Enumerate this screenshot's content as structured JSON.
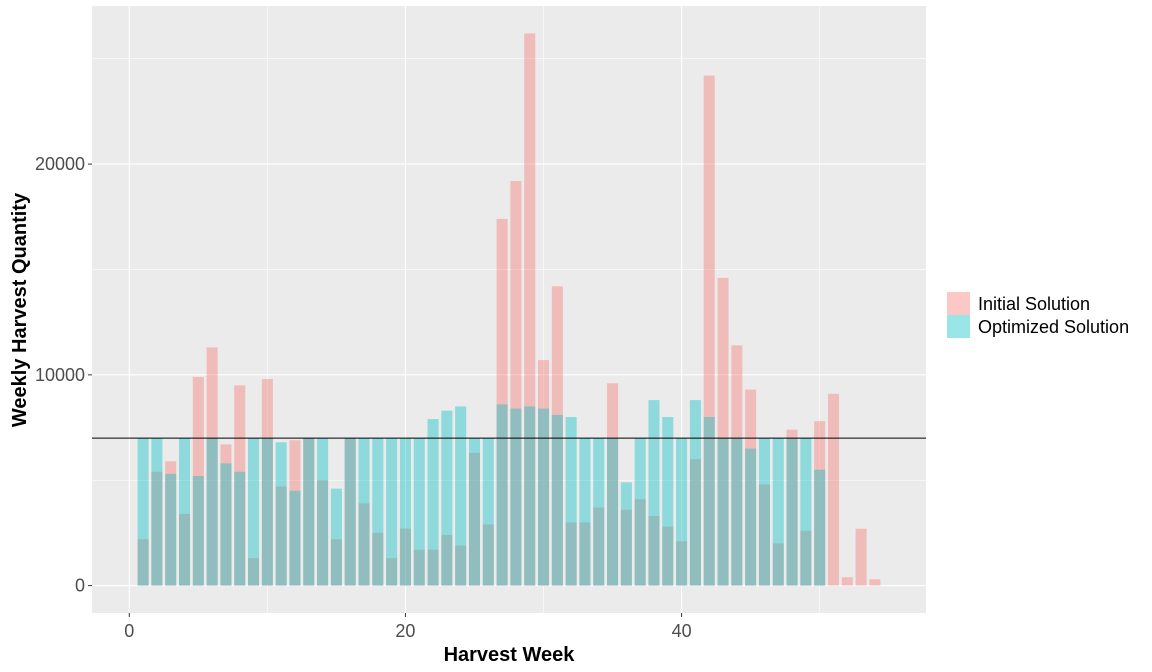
{
  "chart_data": {
    "type": "bar",
    "title": "",
    "xlabel": "Harvest Week",
    "ylabel": "Weekly Harvest Quantity",
    "xlim": [
      -2.7,
      57.7
    ],
    "ylim": [
      -1300,
      27500
    ],
    "x_ticks": [
      0,
      20,
      40
    ],
    "y_ticks": [
      0,
      10000,
      20000
    ],
    "x_tick_labels": [
      "0",
      "20",
      "40"
    ],
    "y_tick_labels": [
      "0",
      "10000",
      "20000"
    ],
    "reference_line": 7000,
    "grid": true,
    "legend_position": "right",
    "x": [
      1,
      2,
      3,
      4,
      5,
      6,
      7,
      8,
      9,
      10,
      11,
      12,
      13,
      14,
      15,
      16,
      17,
      18,
      19,
      20,
      21,
      22,
      23,
      24,
      25,
      26,
      27,
      28,
      29,
      30,
      31,
      32,
      33,
      34,
      35,
      36,
      37,
      38,
      39,
      40,
      41,
      42,
      43,
      44,
      45,
      46,
      47,
      48,
      49,
      50,
      51,
      52,
      53,
      54
    ],
    "series": [
      {
        "name": "Initial Solution",
        "color": "#F8766D",
        "values": [
          2200,
          5400,
          5900,
          3400,
          9900,
          11300,
          6700,
          9500,
          1300,
          9800,
          4700,
          6900,
          7000,
          5000,
          2200,
          7000,
          3900,
          2500,
          1300,
          2700,
          1700,
          1700,
          2400,
          1900,
          6300,
          2900,
          17400,
          19200,
          26200,
          10700,
          14200,
          3000,
          3000,
          3700,
          9600,
          3600,
          4100,
          3300,
          2800,
          2100,
          6000,
          24200,
          14600,
          11400,
          9300,
          4800,
          2000,
          7400,
          2600,
          7800,
          9100,
          400,
          2700,
          300
        ]
      },
      {
        "name": "Optimized Solution",
        "color": "#00BFC4",
        "values": [
          7000,
          7000,
          5300,
          7000,
          5200,
          7000,
          5800,
          5400,
          7000,
          7000,
          6800,
          4500,
          7000,
          7000,
          4600,
          7000,
          7000,
          7000,
          7000,
          7000,
          7000,
          7900,
          8300,
          8500,
          7000,
          7000,
          8600,
          8400,
          8500,
          8400,
          8100,
          8000,
          7000,
          7000,
          7000,
          4900,
          7000,
          8800,
          8000,
          7000,
          8800,
          8000,
          7000,
          7000,
          6500,
          7000,
          7000,
          7000,
          7000,
          5500,
          0,
          0,
          0,
          0
        ]
      }
    ]
  }
}
